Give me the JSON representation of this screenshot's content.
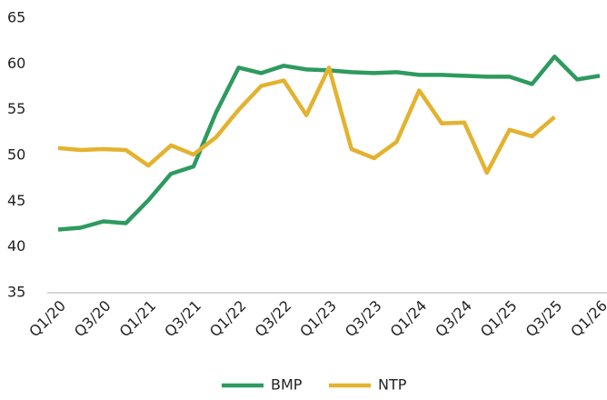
{
  "chart_data": {
    "type": "line",
    "categories": [
      "Q1/20",
      null,
      "Q3/20",
      null,
      "Q1/21",
      null,
      "Q3/21",
      null,
      "Q1/22",
      null,
      "Q3/22",
      null,
      "Q1/23",
      null,
      "Q3/23",
      null,
      "Q1/24",
      null,
      "Q3/24",
      null,
      "Q1/25",
      null,
      "Q3/25",
      null,
      "Q1/26"
    ],
    "series": [
      {
        "name": "BMP",
        "color": "#2e9a5f",
        "values": [
          41.9,
          42.1,
          42.8,
          42.6,
          45.1,
          48.0,
          48.8,
          54.7,
          59.6,
          59.0,
          59.8,
          59.4,
          59.3,
          59.1,
          59.0,
          59.1,
          58.8,
          58.8,
          58.7,
          58.6,
          58.6,
          57.8,
          60.8,
          58.3,
          58.7
        ]
      },
      {
        "name": "NTP",
        "color": "#e3b22f",
        "values": [
          50.8,
          50.6,
          50.7,
          50.6,
          48.9,
          51.1,
          50.1,
          52.0,
          55.0,
          57.6,
          58.2,
          54.4,
          59.6,
          50.7,
          49.7,
          51.5,
          57.1,
          53.5,
          53.6,
          48.1,
          52.8,
          52.1,
          54.2,
          null,
          null
        ]
      }
    ],
    "ylim": [
      35,
      65
    ],
    "yticks": [
      35,
      40,
      45,
      50,
      55,
      60,
      65
    ],
    "grid": false,
    "legend": "bottom"
  }
}
